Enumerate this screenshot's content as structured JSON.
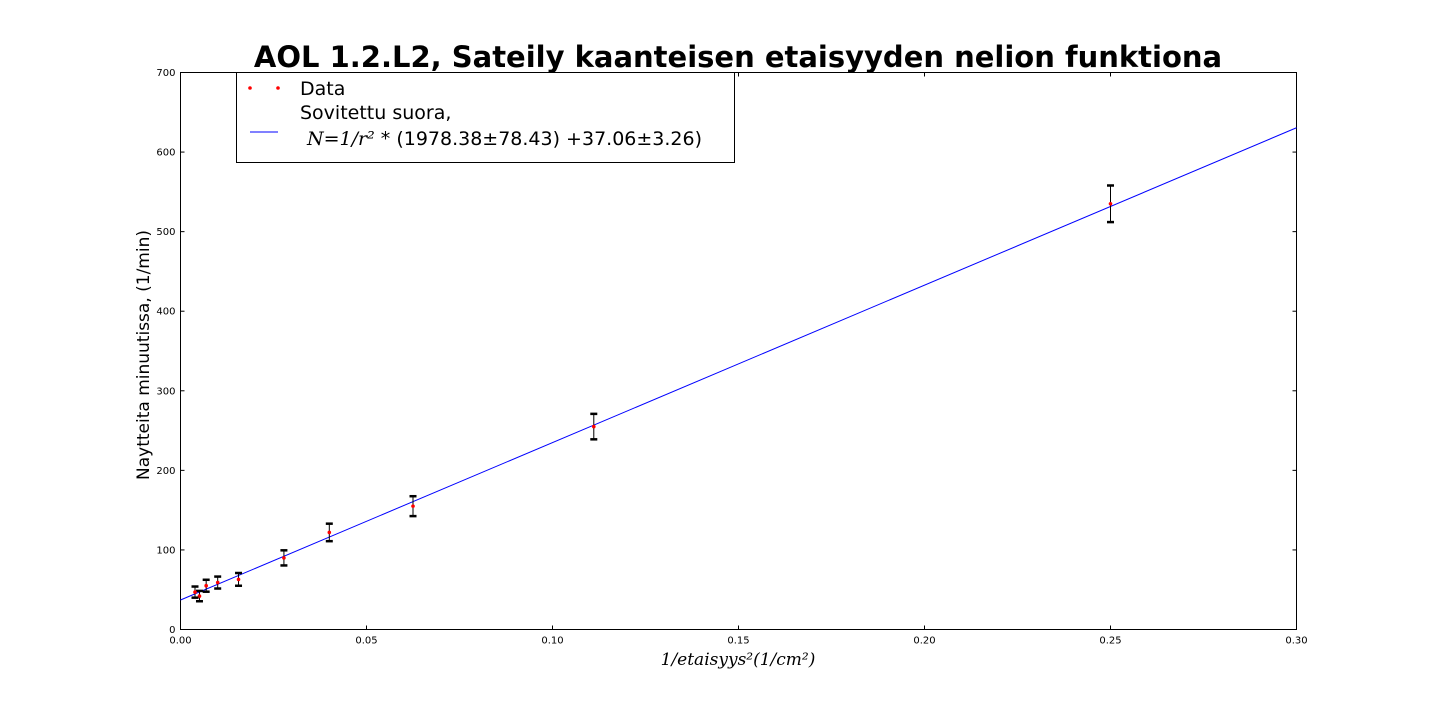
{
  "chart_data": {
    "type": "scatter",
    "title": "AOL 1.2.L2, Sateily kaanteisen etaisyyden nelion funktiona",
    "xlabel": "1/etaisyys²(1/cm²)",
    "ylabel": "Naytteita minuutissa, (1/min)",
    "xlim": [
      0.0,
      0.3
    ],
    "ylim": [
      0,
      700
    ],
    "xticks": [
      0.0,
      0.05,
      0.1,
      0.15,
      0.2,
      0.25,
      0.3
    ],
    "xtick_labels": [
      "0.00",
      "0.05",
      "0.10",
      "0.15",
      "0.20",
      "0.25",
      "0.30"
    ],
    "yticks": [
      0,
      100,
      200,
      300,
      400,
      500,
      600,
      700
    ],
    "ytick_labels": [
      "0",
      "100",
      "200",
      "300",
      "400",
      "500",
      "600",
      "700"
    ],
    "grid": false,
    "legend_position": "top-left",
    "series": [
      {
        "name": "Data",
        "kind": "points_with_errorbars",
        "color": "#ff0000",
        "errorbar_color": "#000000",
        "points": [
          {
            "x": 0.25,
            "y": 535,
            "err": 23
          },
          {
            "x": 0.1111,
            "y": 255,
            "err": 16
          },
          {
            "x": 0.0625,
            "y": 155,
            "err": 12.5
          },
          {
            "x": 0.04,
            "y": 122,
            "err": 11
          },
          {
            "x": 0.0278,
            "y": 90,
            "err": 9.5
          },
          {
            "x": 0.0156,
            "y": 63,
            "err": 8
          },
          {
            "x": 0.01,
            "y": 59,
            "err": 7.5
          },
          {
            "x": 0.0069,
            "y": 55,
            "err": 7.5
          },
          {
            "x": 0.0051,
            "y": 42,
            "err": 6.5
          },
          {
            "x": 0.0039,
            "y": 47,
            "err": 7
          }
        ]
      },
      {
        "name": "Sovitettu suora,\nN=1/r² * (1978.38±78.43) +37.06±3.26)",
        "kind": "line",
        "color": "#0000ff",
        "slope": 1978.38,
        "intercept": 37.06
      }
    ],
    "legend": {
      "data_label": "Data",
      "fit_label_line1": "Sovitettu suora,",
      "fit_label_math": "N=1/r²",
      "fit_label_rest": " * (1978.38±78.43) +37.06±3.26)"
    }
  }
}
